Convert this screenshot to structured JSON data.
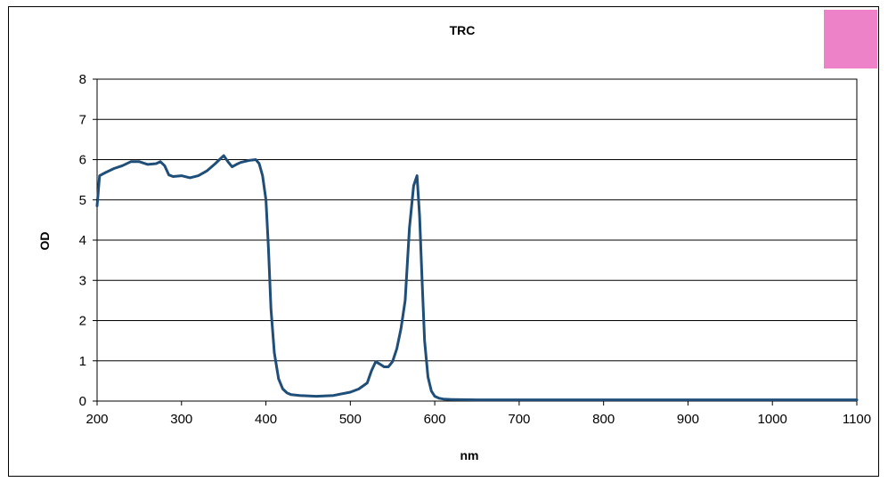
{
  "chart_data": {
    "type": "line",
    "title": "TRC",
    "xlabel": "nm",
    "ylabel": "OD",
    "xlim": [
      200,
      1100
    ],
    "ylim": [
      0,
      8
    ],
    "x_ticks": [
      "200",
      "300",
      "400",
      "500",
      "600",
      "700",
      "800",
      "900",
      "1000",
      "1100"
    ],
    "y_ticks": [
      "0",
      "1",
      "2",
      "3",
      "4",
      "5",
      "6",
      "7",
      "8"
    ],
    "grid": "horizontal",
    "legend_swatch_color": "#EE82C8",
    "line_color": "#1F4E79",
    "series": [
      {
        "x": [
          200,
          203,
          210,
          220,
          230,
          240,
          250,
          260,
          270,
          275,
          280,
          285,
          290,
          300,
          310,
          320,
          330,
          340,
          345,
          350,
          355,
          360,
          365,
          370,
          380,
          388,
          392,
          396,
          400,
          403,
          406,
          410,
          415,
          420,
          425,
          430,
          440,
          460,
          480,
          500,
          510,
          520,
          525,
          530,
          535,
          540,
          545,
          550,
          555,
          560,
          565,
          570,
          575,
          579,
          582,
          585,
          588,
          592,
          596,
          600,
          605,
          610,
          620,
          650,
          700,
          800,
          900,
          1000,
          1100
        ],
        "y": [
          4.85,
          5.6,
          5.68,
          5.78,
          5.85,
          5.95,
          5.95,
          5.88,
          5.9,
          5.95,
          5.85,
          5.62,
          5.58,
          5.6,
          5.55,
          5.6,
          5.72,
          5.9,
          6.0,
          6.1,
          5.95,
          5.82,
          5.88,
          5.93,
          5.98,
          6.0,
          5.9,
          5.6,
          5.0,
          3.8,
          2.3,
          1.2,
          0.55,
          0.3,
          0.2,
          0.16,
          0.14,
          0.12,
          0.14,
          0.22,
          0.3,
          0.45,
          0.75,
          0.98,
          0.92,
          0.85,
          0.85,
          0.98,
          1.3,
          1.8,
          2.5,
          4.3,
          5.35,
          5.6,
          4.6,
          3.0,
          1.5,
          0.6,
          0.25,
          0.12,
          0.07,
          0.05,
          0.04,
          0.03,
          0.03,
          0.03,
          0.03,
          0.03,
          0.03
        ]
      }
    ]
  }
}
